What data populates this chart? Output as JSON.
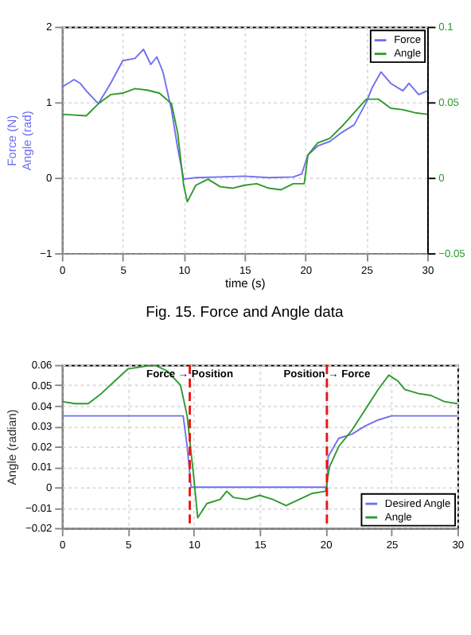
{
  "chart_data": [
    {
      "type": "line",
      "xlabel": "time (s)",
      "ylabel": "Force (N)\nAngle (rad)",
      "annotations": [
        "Fig. 15. Force and Angle data"
      ],
      "xlim": [
        0,
        30
      ],
      "xticks": [
        0,
        5,
        10,
        15,
        20,
        25,
        30
      ],
      "ylim": [
        -1,
        2
      ],
      "yticks": [
        -1,
        0,
        1,
        2
      ],
      "y2lim": [
        -0.05,
        0.1
      ],
      "y2ticks": [
        -0.05,
        0,
        0.05,
        0.1
      ],
      "grid": true,
      "legend": "top right",
      "series": [
        {
          "name": "Force",
          "color": "#7070ee",
          "x": [
            0,
            1,
            1.5,
            2,
            3,
            4,
            5,
            6,
            6.7,
            7.3,
            7.8,
            8.3,
            9,
            9.5,
            10,
            11,
            13,
            15,
            17,
            19,
            19.7,
            20.2,
            21,
            22,
            23,
            24,
            25,
            25.5,
            26.2,
            27,
            28,
            28.5,
            29.3,
            30
          ],
          "values": [
            1.2,
            1.3,
            1.25,
            1.15,
            0.98,
            1.25,
            1.55,
            1.58,
            1.7,
            1.5,
            1.6,
            1.4,
            0.9,
            0.4,
            -0.02,
            0,
            0.01,
            0.02,
            0,
            0.01,
            0.05,
            0.3,
            0.42,
            0.48,
            0.6,
            0.7,
            1.0,
            1.2,
            1.4,
            1.25,
            1.15,
            1.25,
            1.1,
            1.15
          ]
        },
        {
          "name": "Angle",
          "color": "#2e9a2e",
          "axis": "y2",
          "x": [
            0,
            2,
            3,
            4,
            5,
            6,
            7,
            8,
            9,
            9.5,
            10,
            10.3,
            11,
            12,
            13,
            14,
            15,
            16,
            17,
            18,
            19,
            19.9,
            20.2,
            21,
            22,
            23,
            24,
            25,
            26,
            27,
            28,
            29,
            30
          ],
          "values": [
            0.042,
            0.041,
            0.049,
            0.055,
            0.056,
            0.059,
            0.058,
            0.056,
            0.049,
            0.03,
            -0.005,
            -0.016,
            -0.005,
            -0.001,
            -0.006,
            -0.007,
            -0.005,
            -0.004,
            -0.007,
            -0.008,
            -0.004,
            -0.004,
            0.015,
            0.023,
            0.026,
            0.034,
            0.043,
            0.052,
            0.052,
            0.046,
            0.045,
            0.043,
            0.042
          ]
        }
      ]
    },
    {
      "type": "line",
      "ylabel": "Angle (radian)",
      "xlim": [
        0,
        30
      ],
      "xticks": [
        0,
        5,
        10,
        15,
        20,
        25,
        30
      ],
      "ylim": [
        -0.02,
        0.06
      ],
      "yticks": [
        -0.02,
        -0.01,
        0,
        0.01,
        0.02,
        0.03,
        0.04,
        0.05,
        0.06
      ],
      "grid": true,
      "legend": "bottom right",
      "ref_lines": [
        {
          "axis": "x",
          "value": 9.7,
          "label": "Force → Position",
          "color": "#ee1111",
          "line_style": "dashed"
        },
        {
          "axis": "x",
          "value": 20.1,
          "label": "Position → Force",
          "color": "#ee1111",
          "line_style": "dashed"
        }
      ],
      "series": [
        {
          "name": "Desired Angle",
          "color": "#7070ee",
          "x": [
            0,
            9.2,
            9.5,
            9.8,
            20.1,
            20.2,
            21,
            22,
            23,
            24,
            25,
            30
          ],
          "values": [
            0.035,
            0.035,
            0.02,
            0,
            0,
            0.015,
            0.024,
            0.026,
            0.03,
            0.033,
            0.035,
            0.035
          ]
        },
        {
          "name": "Angle",
          "color": "#2e9a2e",
          "x": [
            0,
            1,
            2,
            3,
            4,
            5,
            6,
            7,
            8,
            9,
            9.5,
            10,
            10.3,
            11,
            12,
            12.5,
            13,
            14,
            15,
            16,
            17,
            18,
            19,
            20,
            20.3,
            21,
            22,
            23,
            24,
            24.8,
            25.5,
            26,
            27,
            28,
            29,
            30
          ],
          "values": [
            0.042,
            0.041,
            0.041,
            0.046,
            0.052,
            0.058,
            0.059,
            0.06,
            0.057,
            0.05,
            0.035,
            0.005,
            -0.015,
            -0.008,
            -0.006,
            -0.002,
            -0.005,
            -0.006,
            -0.004,
            -0.006,
            -0.009,
            -0.006,
            -0.003,
            -0.002,
            0.01,
            0.02,
            0.028,
            0.038,
            0.048,
            0.055,
            0.052,
            0.048,
            0.046,
            0.045,
            0.042,
            0.041
          ]
        }
      ]
    }
  ]
}
